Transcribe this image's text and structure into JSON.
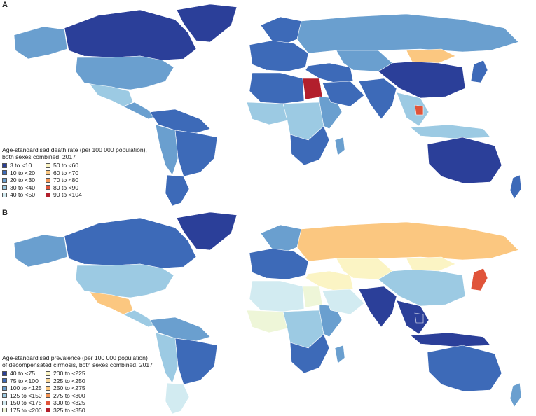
{
  "panel_a": {
    "letter": "A",
    "legend_title_line1": "Age-standardised death rate (per 100 000 population),",
    "legend_title_line2": "both sexes combined, 2017",
    "legend": [
      {
        "label": "3 to <10",
        "color": "#2b3f99"
      },
      {
        "label": "10 to <20",
        "color": "#3d6ab8"
      },
      {
        "label": "20 to <30",
        "color": "#6a9fcf"
      },
      {
        "label": "30 to <40",
        "color": "#9ccae3"
      },
      {
        "label": "40 to <50",
        "color": "#d2ebf1"
      },
      {
        "label": "50 to <60",
        "color": "#fbf4c4"
      },
      {
        "label": "60 to <70",
        "color": "#fbc780"
      },
      {
        "label": "70 to <80",
        "color": "#f39556"
      },
      {
        "label": "80 to <90",
        "color": "#e0543a"
      },
      {
        "label": "90 to <104",
        "color": "#b21f2c"
      }
    ]
  },
  "panel_b": {
    "letter": "B",
    "legend_title_line1": "Age-standardised prevalence (per 100 000 population)",
    "legend_title_line2": "of decompensated cirrhosis, both sexes combined, 2017",
    "legend": [
      {
        "label": "40 to <75",
        "color": "#2b3f99"
      },
      {
        "label": "75 to <100",
        "color": "#3d6ab8"
      },
      {
        "label": "100 to <125",
        "color": "#6a9fcf"
      },
      {
        "label": "125 to <150",
        "color": "#9ccae3"
      },
      {
        "label": "150 to <175",
        "color": "#d2ebf1"
      },
      {
        "label": "175 to <200",
        "color": "#eef6d8"
      },
      {
        "label": "200 to <225",
        "color": "#fbf4c4"
      },
      {
        "label": "225 to <250",
        "color": "#fbd89a"
      },
      {
        "label": "250 to <275",
        "color": "#fbc780"
      },
      {
        "label": "275 to <300",
        "color": "#f39556"
      },
      {
        "label": "300 to <325",
        "color": "#e0543a"
      },
      {
        "label": "325 to <350",
        "color": "#b21f2c"
      }
    ]
  },
  "regions_a": {
    "greenland": "#2b3f99",
    "canada": "#2b3f99",
    "usa": "#6a9fcf",
    "alaska": "#6a9fcf",
    "mexico": "#9ccae3",
    "central_america": "#6a9fcf",
    "south_america_north": "#3d6ab8",
    "brazil": "#3d6ab8",
    "andes": "#6a9fcf",
    "argentina": "#3d6ab8",
    "europe_west": "#3d6ab8",
    "scandinavia": "#3d6ab8",
    "russia": "#6a9fcf",
    "north_africa": "#3d6ab8",
    "egypt": "#b21f2c",
    "west_africa": "#9ccae3",
    "central_africa": "#9ccae3",
    "east_africa": "#6a9fcf",
    "southern_africa": "#3d6ab8",
    "madagascar": "#6a9fcf",
    "middle_east": "#3d6ab8",
    "arabia": "#3d6ab8",
    "central_asia": "#6a9fcf",
    "mongolia": "#fbc780",
    "china": "#2b3f99",
    "india": "#3d6ab8",
    "southeast_asia": "#9ccae3",
    "cambodia": "#e0543a",
    "japan": "#3d6ab8",
    "indonesia": "#9ccae3",
    "australia": "#2b3f99",
    "new_zealand": "#3d6ab8"
  },
  "regions_b": {
    "greenland": "#2b3f99",
    "canada": "#3d6ab8",
    "usa": "#9ccae3",
    "alaska": "#6a9fcf",
    "mexico": "#fbc780",
    "central_america": "#9ccae3",
    "south_america_north": "#6a9fcf",
    "brazil": "#3d6ab8",
    "andes": "#9ccae3",
    "argentina": "#d2ebf1",
    "europe_west": "#3d6ab8",
    "scandinavia": "#6a9fcf",
    "russia": "#fbc780",
    "north_africa": "#d2ebf1",
    "egypt": "#eef6d8",
    "west_africa": "#eef6d8",
    "central_africa": "#9ccae3",
    "east_africa": "#6a9fcf",
    "southern_africa": "#3d6ab8",
    "madagascar": "#6a9fcf",
    "middle_east": "#fbf4c4",
    "arabia": "#d2ebf1",
    "central_asia": "#fbf4c4",
    "mongolia": "#fbf4c4",
    "china": "#9ccae3",
    "india": "#2b3f99",
    "southeast_asia": "#2b3f99",
    "cambodia": "#2b3f99",
    "japan": "#e0543a",
    "indonesia": "#2b3f99",
    "australia": "#3d6ab8",
    "new_zealand": "#6a9fcf"
  }
}
